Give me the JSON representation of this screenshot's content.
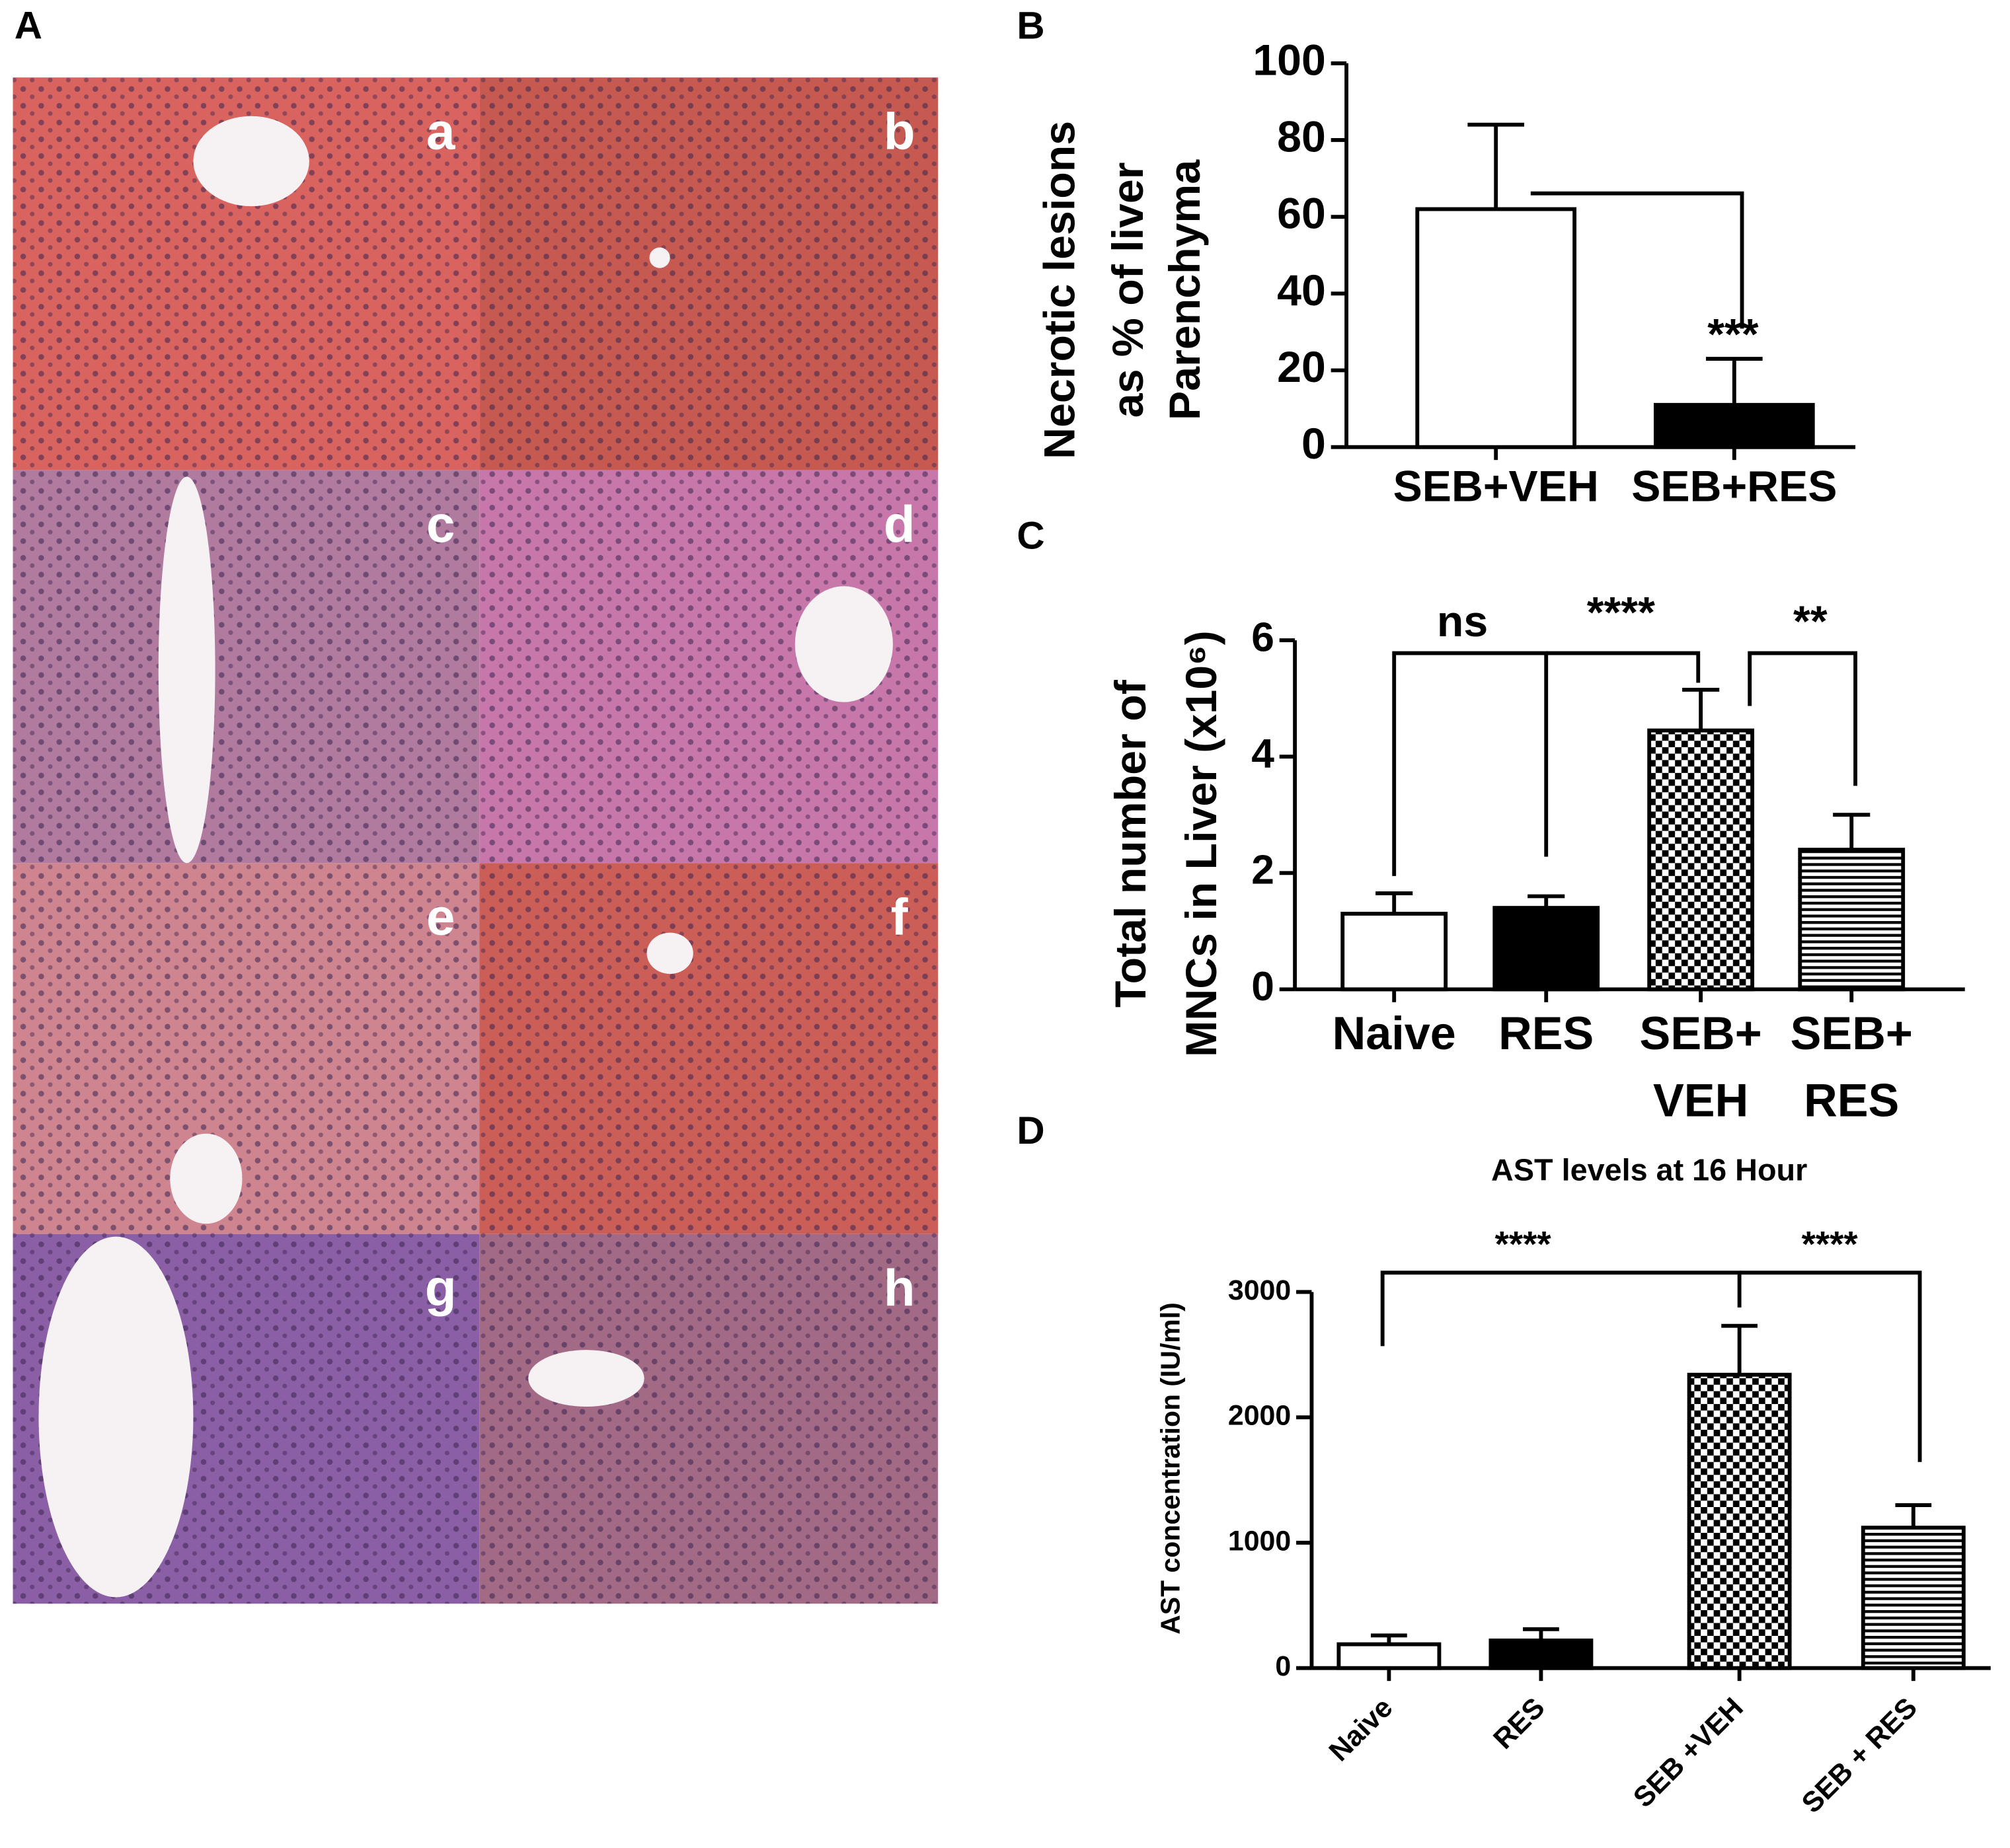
{
  "panel_labels": [
    "A",
    "B",
    "C",
    "D"
  ],
  "histology": {
    "labels": [
      "a",
      "b",
      "c",
      "d",
      "e",
      "f",
      "g",
      "h"
    ]
  },
  "chart_data": [
    {
      "type": "bar",
      "ylabel": [
        "Necrotic lesions",
        "as % of liver",
        "Parenchyma"
      ],
      "categories": [
        "SEB+VEH",
        "SEB+RES"
      ],
      "values": [
        62,
        11
      ],
      "errors": [
        22,
        12
      ],
      "patterns": [
        "none",
        "solid"
      ],
      "color": "#000000",
      "ylim": [
        0,
        100
      ],
      "yticks": [
        0,
        20,
        40,
        60,
        80,
        100
      ],
      "annotations": [
        "***"
      ]
    },
    {
      "type": "bar",
      "ylabel": [
        "Total number of",
        "MNCs in Liver (x10⁶)"
      ],
      "categories": [
        [
          "Naive"
        ],
        [
          "RES"
        ],
        [
          "SEB+",
          "VEH"
        ],
        [
          "SEB+",
          "RES"
        ]
      ],
      "values": [
        1.3,
        1.4,
        4.45,
        2.4
      ],
      "errors": [
        0.35,
        0.2,
        0.7,
        0.6
      ],
      "patterns": [
        "none",
        "solid",
        "checker",
        "hstripe"
      ],
      "color": "#000000",
      "ylim": [
        0,
        6
      ],
      "yticks": [
        0,
        2,
        4,
        6
      ],
      "annotations": [
        "ns",
        "****",
        "**"
      ]
    },
    {
      "type": "bar",
      "title": "AST levels at 16 Hour",
      "ylabel": [
        "AST concentration (IU/ml)"
      ],
      "categories": [
        "Naive",
        "RES",
        "SEB +VEH",
        "SEB + RES"
      ],
      "values": [
        190,
        220,
        2340,
        1120
      ],
      "errors": [
        70,
        90,
        390,
        180
      ],
      "patterns": [
        "none",
        "solid",
        "checker",
        "hstripe"
      ],
      "color": "#000000",
      "ylim": [
        0,
        3000
      ],
      "yticks": [
        0,
        1000,
        2000,
        3000
      ],
      "annotations": [
        "****",
        "****"
      ]
    }
  ]
}
